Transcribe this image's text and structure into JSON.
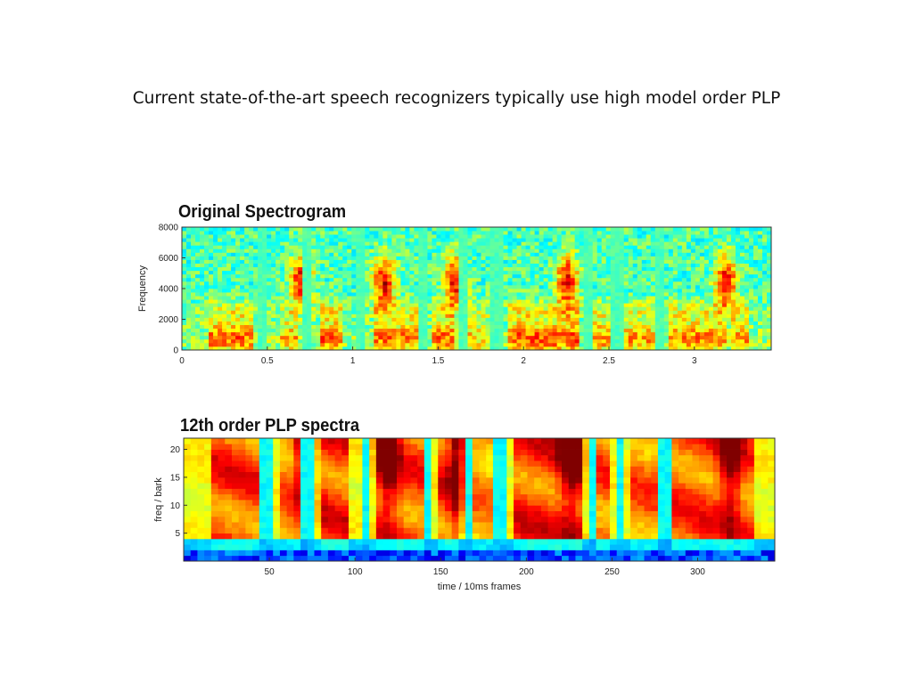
{
  "slide": {
    "title": "Current state-of-the-art speech recognizers typically use high model order PLP"
  },
  "chart_data": [
    {
      "type": "heatmap",
      "title": "Original Spectrogram",
      "xlabel": "",
      "ylabel": "Frequency",
      "xlim": [
        0,
        3.45
      ],
      "ylim": [
        0,
        8000
      ],
      "xticks": [
        0,
        0.5,
        1,
        1.5,
        2,
        2.5,
        3
      ],
      "xtick_labels": [
        "0",
        "0.5",
        "1",
        "1.5",
        "2",
        "2.5",
        "3"
      ],
      "yticks": [
        0,
        2000,
        4000,
        6000,
        8000
      ],
      "ytick_labels": [
        "0",
        "2000",
        "4000",
        "6000",
        "8000"
      ],
      "colormap": "jet",
      "colors": {
        "low": "#00007f",
        "mid": "#7fff7f",
        "high": "#7f0000"
      },
      "grid": false
    },
    {
      "type": "heatmap",
      "title": "12th order PLP spectra",
      "xlabel": "time / 10ms frames",
      "ylabel": "freq / bark",
      "xlim": [
        0,
        345
      ],
      "ylim": [
        0,
        22
      ],
      "xticks": [
        50,
        100,
        150,
        200,
        250,
        300
      ],
      "xtick_labels": [
        "50",
        "100",
        "150",
        "200",
        "250",
        "300"
      ],
      "yticks": [
        5,
        10,
        15,
        20
      ],
      "ytick_labels": [
        "5",
        "10",
        "15",
        "20"
      ],
      "colormap": "jet",
      "colors": {
        "low": "#00007f",
        "mid": "#7fff7f",
        "high": "#7f0000"
      },
      "grid": false
    }
  ]
}
